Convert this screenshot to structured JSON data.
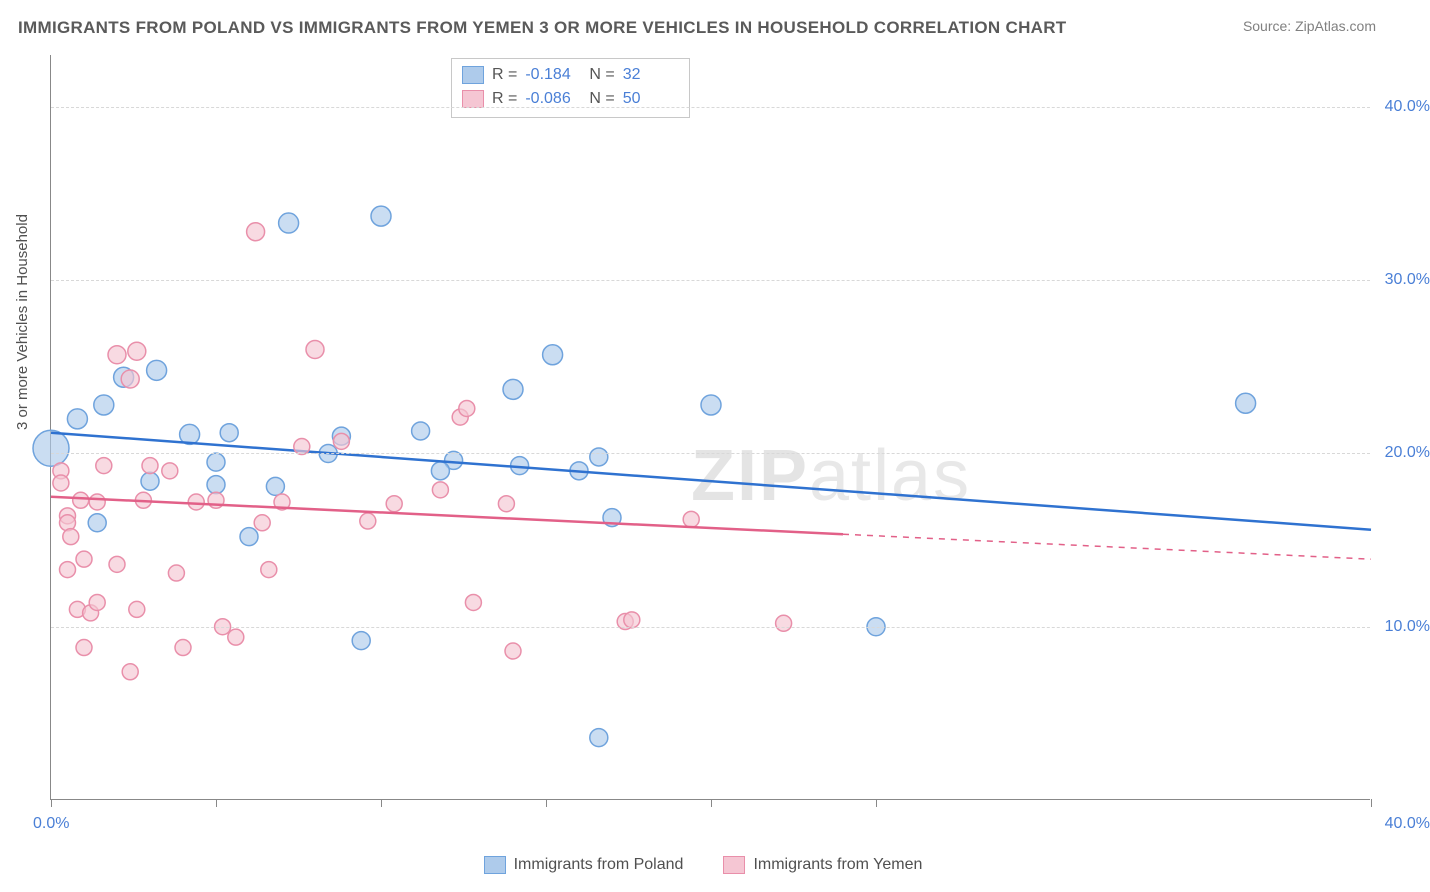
{
  "title": "IMMIGRANTS FROM POLAND VS IMMIGRANTS FROM YEMEN 3 OR MORE VEHICLES IN HOUSEHOLD CORRELATION CHART",
  "source": "Source: ZipAtlas.com",
  "yaxis_label": "3 or more Vehicles in Household",
  "watermark_bold": "ZIP",
  "watermark_light": "atlas",
  "chart": {
    "type": "scatter",
    "xlim": [
      0,
      40
    ],
    "ylim": [
      0,
      43
    ],
    "yticks": [
      10,
      20,
      30,
      40
    ],
    "ytick_labels": [
      "10.0%",
      "20.0%",
      "30.0%",
      "40.0%"
    ],
    "xticks": [
      0,
      5,
      10,
      15,
      20,
      25,
      40
    ],
    "xlabel_min": "0.0%",
    "xlabel_max": "40.0%",
    "background": "#ffffff",
    "grid_color": "#d8d8d8",
    "axis_color": "#888888",
    "tick_label_color": "#4a7fd6"
  },
  "series": [
    {
      "name": "Immigrants from Poland",
      "color_fill": "#aecbeb",
      "color_stroke": "#6fa3dd",
      "trend_color": "#2f72d0",
      "R": "-0.184",
      "N": "32",
      "trend": {
        "x1": 0,
        "y1": 21.2,
        "x2": 40,
        "y2": 15.6,
        "solid_until": 40
      },
      "points": [
        {
          "x": 0.0,
          "y": 20.3,
          "r": 18
        },
        {
          "x": 0.8,
          "y": 22.0,
          "r": 10
        },
        {
          "x": 1.6,
          "y": 22.8,
          "r": 10
        },
        {
          "x": 2.2,
          "y": 24.4,
          "r": 10
        },
        {
          "x": 3.2,
          "y": 24.8,
          "r": 10
        },
        {
          "x": 3.0,
          "y": 18.4,
          "r": 9
        },
        {
          "x": 1.4,
          "y": 16.0,
          "r": 9
        },
        {
          "x": 4.2,
          "y": 21.1,
          "r": 10
        },
        {
          "x": 5.4,
          "y": 21.2,
          "r": 9
        },
        {
          "x": 6.8,
          "y": 18.1,
          "r": 9
        },
        {
          "x": 5.0,
          "y": 19.5,
          "r": 9
        },
        {
          "x": 5.0,
          "y": 18.2,
          "r": 9
        },
        {
          "x": 6.0,
          "y": 15.2,
          "r": 9
        },
        {
          "x": 7.2,
          "y": 33.3,
          "r": 10
        },
        {
          "x": 10.0,
          "y": 33.7,
          "r": 10
        },
        {
          "x": 8.8,
          "y": 21.0,
          "r": 9
        },
        {
          "x": 8.4,
          "y": 20.0,
          "r": 9
        },
        {
          "x": 11.2,
          "y": 21.3,
          "r": 9
        },
        {
          "x": 12.2,
          "y": 19.6,
          "r": 9
        },
        {
          "x": 11.8,
          "y": 19.0,
          "r": 9
        },
        {
          "x": 14.0,
          "y": 23.7,
          "r": 10
        },
        {
          "x": 14.2,
          "y": 19.3,
          "r": 9
        },
        {
          "x": 15.2,
          "y": 25.7,
          "r": 10
        },
        {
          "x": 16.6,
          "y": 19.8,
          "r": 9
        },
        {
          "x": 16.0,
          "y": 19.0,
          "r": 9
        },
        {
          "x": 17.0,
          "y": 16.3,
          "r": 9
        },
        {
          "x": 9.4,
          "y": 9.2,
          "r": 9
        },
        {
          "x": 16.6,
          "y": 3.6,
          "r": 9
        },
        {
          "x": 25.0,
          "y": 10.0,
          "r": 9
        },
        {
          "x": 20.0,
          "y": 22.8,
          "r": 10
        },
        {
          "x": 36.2,
          "y": 22.9,
          "r": 10
        }
      ]
    },
    {
      "name": "Immigrants from Yemen",
      "color_fill": "#f5c6d3",
      "color_stroke": "#e98faa",
      "trend_color": "#e26088",
      "R": "-0.086",
      "N": "50",
      "trend": {
        "x1": 0,
        "y1": 17.5,
        "x2": 40,
        "y2": 13.9,
        "solid_until": 24
      },
      "points": [
        {
          "x": 0.3,
          "y": 19.0,
          "r": 8
        },
        {
          "x": 0.3,
          "y": 18.3,
          "r": 8
        },
        {
          "x": 0.5,
          "y": 16.4,
          "r": 8
        },
        {
          "x": 0.5,
          "y": 16.0,
          "r": 8
        },
        {
          "x": 0.6,
          "y": 15.2,
          "r": 8
        },
        {
          "x": 1.0,
          "y": 13.9,
          "r": 8
        },
        {
          "x": 0.8,
          "y": 11.0,
          "r": 8
        },
        {
          "x": 1.2,
          "y": 10.8,
          "r": 8
        },
        {
          "x": 1.4,
          "y": 11.4,
          "r": 8
        },
        {
          "x": 0.5,
          "y": 13.3,
          "r": 8
        },
        {
          "x": 0.9,
          "y": 17.3,
          "r": 8
        },
        {
          "x": 1.6,
          "y": 19.3,
          "r": 8
        },
        {
          "x": 1.4,
          "y": 17.2,
          "r": 8
        },
        {
          "x": 2.0,
          "y": 25.7,
          "r": 9
        },
        {
          "x": 2.6,
          "y": 25.9,
          "r": 9
        },
        {
          "x": 2.4,
          "y": 24.3,
          "r": 9
        },
        {
          "x": 3.0,
          "y": 19.3,
          "r": 8
        },
        {
          "x": 2.8,
          "y": 17.3,
          "r": 8
        },
        {
          "x": 2.0,
          "y": 13.6,
          "r": 8
        },
        {
          "x": 2.6,
          "y": 11.0,
          "r": 8
        },
        {
          "x": 1.0,
          "y": 8.8,
          "r": 8
        },
        {
          "x": 2.4,
          "y": 7.4,
          "r": 8
        },
        {
          "x": 3.6,
          "y": 19.0,
          "r": 8
        },
        {
          "x": 3.8,
          "y": 13.1,
          "r": 8
        },
        {
          "x": 4.4,
          "y": 17.2,
          "r": 8
        },
        {
          "x": 4.0,
          "y": 8.8,
          "r": 8
        },
        {
          "x": 5.0,
          "y": 17.3,
          "r": 8
        },
        {
          "x": 6.2,
          "y": 32.8,
          "r": 9
        },
        {
          "x": 5.2,
          "y": 10.0,
          "r": 8
        },
        {
          "x": 5.6,
          "y": 9.4,
          "r": 8
        },
        {
          "x": 6.4,
          "y": 16.0,
          "r": 8
        },
        {
          "x": 6.6,
          "y": 13.3,
          "r": 8
        },
        {
          "x": 7.6,
          "y": 20.4,
          "r": 8
        },
        {
          "x": 7.0,
          "y": 17.2,
          "r": 8
        },
        {
          "x": 8.0,
          "y": 26.0,
          "r": 9
        },
        {
          "x": 8.8,
          "y": 20.7,
          "r": 8
        },
        {
          "x": 9.6,
          "y": 16.1,
          "r": 8
        },
        {
          "x": 10.4,
          "y": 17.1,
          "r": 8
        },
        {
          "x": 11.8,
          "y": 17.9,
          "r": 8
        },
        {
          "x": 12.4,
          "y": 22.1,
          "r": 8
        },
        {
          "x": 12.6,
          "y": 22.6,
          "r": 8
        },
        {
          "x": 12.8,
          "y": 11.4,
          "r": 8
        },
        {
          "x": 13.8,
          "y": 17.1,
          "r": 8
        },
        {
          "x": 14.0,
          "y": 8.6,
          "r": 8
        },
        {
          "x": 17.4,
          "y": 10.3,
          "r": 8
        },
        {
          "x": 17.6,
          "y": 10.4,
          "r": 8
        },
        {
          "x": 19.4,
          "y": 16.2,
          "r": 8
        },
        {
          "x": 22.2,
          "y": 10.2,
          "r": 8
        }
      ]
    }
  ],
  "legend_bottom": [
    {
      "label": "Immigrants from Poland",
      "fill": "#aecbeb",
      "stroke": "#6fa3dd"
    },
    {
      "label": "Immigrants from Yemen",
      "fill": "#f5c6d3",
      "stroke": "#e98faa"
    }
  ]
}
